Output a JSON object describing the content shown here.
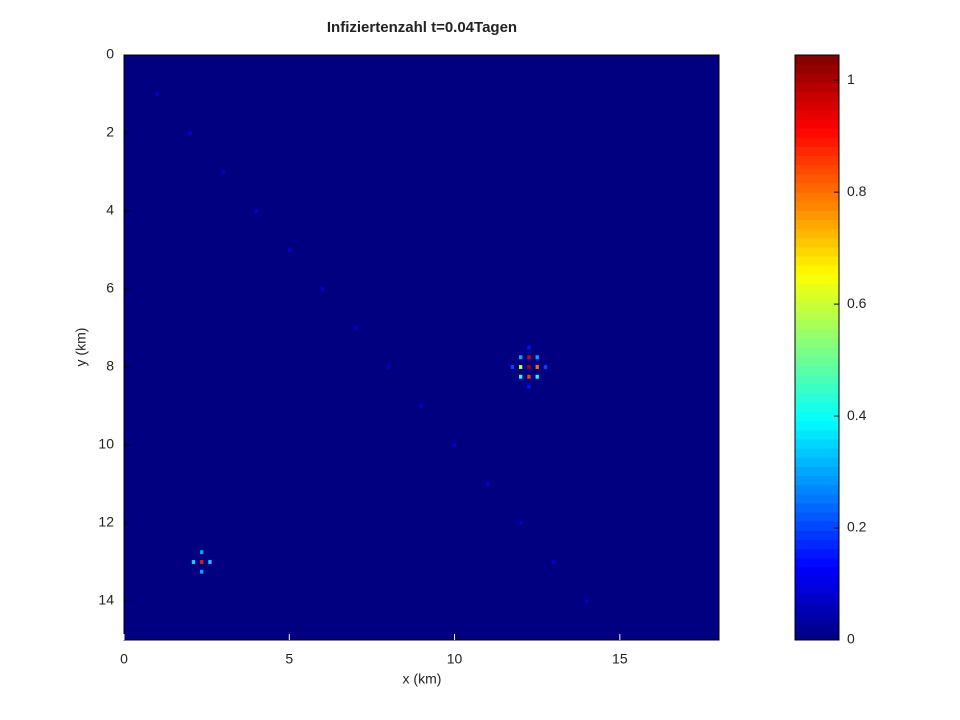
{
  "chart_data": {
    "type": "heatmap",
    "title": "Infiziertenzahl  t=0.04Tagen",
    "x_label": "x (km)",
    "y_label": "y (km)",
    "colormap": "jet",
    "y_reversed": true,
    "xlim": [
      0,
      18
    ],
    "ylim": [
      0,
      15
    ],
    "xticks": [
      0,
      5,
      10,
      15
    ],
    "yticks": [
      0,
      2,
      4,
      6,
      8,
      10,
      12,
      14
    ],
    "clim": [
      0,
      1.045
    ],
    "cticks": [
      0,
      0.2,
      0.4,
      0.6,
      0.8,
      1
    ],
    "x": [
      12.25,
      12.0,
      12.25,
      12.5,
      11.75,
      12.0,
      12.25,
      12.5,
      12.75,
      12.0,
      12.25,
      12.5,
      12.25,
      2.35,
      2.1,
      2.35,
      2.6,
      2.35,
      1,
      2,
      3,
      4,
      5,
      6,
      7,
      8,
      9,
      10,
      11,
      12,
      13,
      14
    ],
    "y": [
      7.5,
      7.75,
      7.75,
      7.75,
      8.0,
      8.0,
      8.0,
      8.0,
      8.0,
      8.25,
      8.25,
      8.25,
      8.5,
      12.75,
      13.0,
      13.0,
      13.0,
      13.25,
      1,
      2,
      3,
      4,
      5,
      6,
      7,
      8,
      9,
      10,
      11,
      12,
      13,
      14
    ],
    "values": [
      0.15,
      0.3,
      0.95,
      0.3,
      0.2,
      0.6,
      1.0,
      0.8,
      0.2,
      0.4,
      0.85,
      0.4,
      0.15,
      0.3,
      0.35,
      0.9,
      0.35,
      0.3,
      0.08,
      0.08,
      0.08,
      0.08,
      0.08,
      0.08,
      0.08,
      0.08,
      0.08,
      0.08,
      0.08,
      0.08,
      0.08,
      0.08
    ]
  }
}
